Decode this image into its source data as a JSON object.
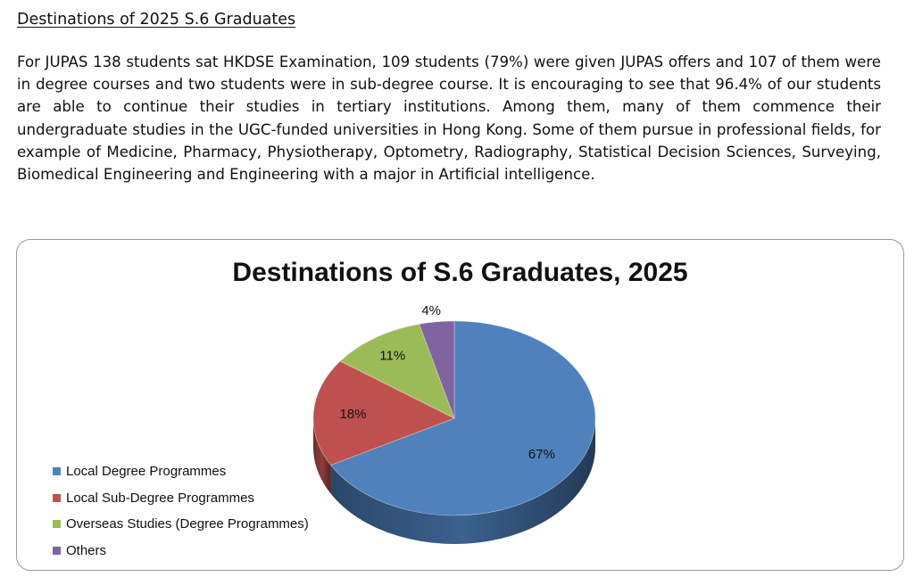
{
  "heading": "Destinations of 2025 S.6 Graduates",
  "paragraph": "For JUPAS 138 students sat HKDSE Examination, 109 students (79%) were given JUPAS offers and 107 of them were in degree courses and two students were in sub-degree course. It is encouraging to see that 96.4% of our students are able to continue their studies in tertiary institutions. Among them, many of them commence their undergraduate studies in the UGC-funded universities in Hong Kong. Some of them pursue in professional fields, for example of Medicine, Pharmacy, Physiotherapy, Optometry, Radiography, Statistical Decision Sciences, Surveying, Biomedical Engineering and Engineering with a major in Artificial intelligence.",
  "chart_data": {
    "type": "pie",
    "title": "Destinations of S.6 Graduates, 2025",
    "legend_position": "left",
    "slices": [
      {
        "name": "Local Degree Programmes",
        "value": 67,
        "label": "67%",
        "color": "#4F81BD"
      },
      {
        "name": "Local Sub-Degree Programmes",
        "value": 18,
        "label": "18%",
        "color": "#C0504D"
      },
      {
        "name": "Overseas Studies (Degree Programmes)",
        "value": 11,
        "label": "11%",
        "color": "#9BBB59"
      },
      {
        "name": "Others",
        "value": 4,
        "label": "4%",
        "color": "#8064A2"
      }
    ]
  }
}
